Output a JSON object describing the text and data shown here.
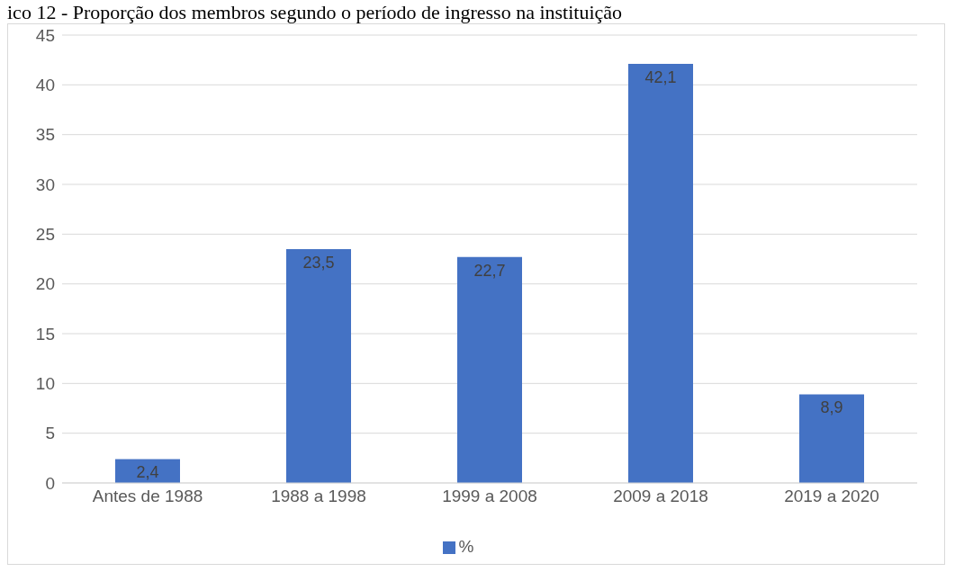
{
  "chart_data": {
    "type": "bar",
    "title": "ico 12 - Proporção dos membros segundo o período de ingresso na instituição",
    "categories": [
      "Antes de 1988",
      "1988 a 1998",
      "1999 a 2008",
      "2009 a 2018",
      "2019 a 2020"
    ],
    "series": [
      {
        "name": "%",
        "color": "#4472c4",
        "values": [
          2.4,
          23.5,
          22.7,
          42.1,
          8.9
        ],
        "value_labels": [
          "2,4",
          "23,5",
          "22,7",
          "42,1",
          "8,9"
        ]
      }
    ],
    "ylim": [
      0,
      45
    ],
    "yticks": [
      0,
      5,
      10,
      15,
      20,
      25,
      30,
      35,
      40,
      45
    ],
    "grid": "y",
    "legend": "bottom"
  }
}
